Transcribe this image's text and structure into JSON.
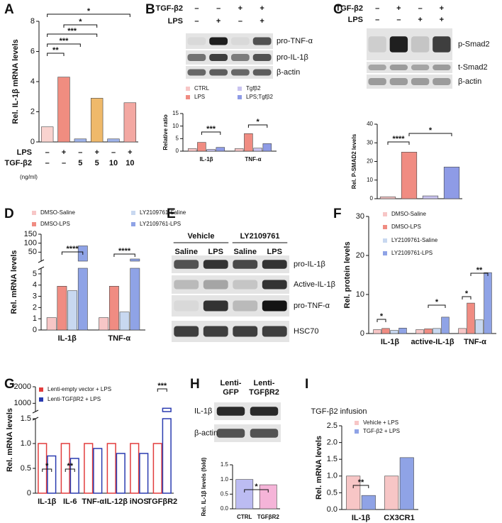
{
  "panel_labels": [
    "A",
    "B",
    "C",
    "D",
    "E",
    "F",
    "G",
    "H",
    "I"
  ],
  "blots": [
    {
      "conditions": [
        {
          "label": "TGF-β2",
          "values": [
            "–",
            "–",
            "+",
            "+"
          ]
        },
        {
          "label": "LPS",
          "values": [
            "–",
            "+",
            "–",
            "+"
          ]
        }
      ],
      "bands": [
        "pro-TNF-α",
        "pro-IL-1β",
        "β-actin"
      ]
    },
    {
      "conditions": [
        {
          "label": "TGF-β2",
          "values": [
            "–",
            "+",
            "–",
            "+"
          ]
        },
        {
          "label": "LPS",
          "values": [
            "–",
            "–",
            "+",
            "+"
          ]
        }
      ],
      "bands": [
        "p-Smad2",
        "t-Smad2",
        "β-actin"
      ]
    },
    {
      "groups": [
        "Vehicle",
        "LY2109761"
      ],
      "lanes": [
        "Saline",
        "LPS",
        "Saline",
        "LPS"
      ],
      "bands": [
        "pro-IL-1β",
        "Active-IL-1β",
        "pro-TNF-α",
        "HSC70"
      ]
    },
    {
      "lanes": [
        [
          "Lenti-",
          "GFP"
        ],
        [
          "Lenti-",
          "TGFβR2"
        ]
      ],
      "bands": [
        "IL-1β",
        "β-actin"
      ]
    }
  ],
  "chart_data": [
    {
      "type": "bar",
      "y_label": "Rel. IL-1β mRNA levels",
      "categories": [
        null,
        null,
        null,
        null,
        null,
        null
      ],
      "values": [
        1,
        4.3,
        0.2,
        2.9,
        0.2,
        2.6
      ],
      "colors": [
        "#f9d3cf",
        "#f08d80",
        "#9fb3ea",
        "#efb96a",
        "#9fb3ea",
        "#f3a8a2"
      ],
      "ylim": [
        0,
        8
      ],
      "yticks": [
        0,
        2,
        4,
        6,
        8
      ],
      "x_rows": [
        {
          "label": "LPS",
          "values": [
            "–",
            "+",
            "–",
            "+",
            "–",
            "+"
          ]
        },
        {
          "label": "TGF-β2",
          "values": [
            "–",
            "–",
            "5",
            "5",
            "10",
            "10"
          ]
        }
      ],
      "x_unit": "(ng/ml)",
      "annotations": [
        "*",
        "*",
        "***",
        "***",
        "**"
      ]
    },
    {
      "type": "bar",
      "y_label": "Relative ratio",
      "categories": [
        "IL-1β",
        "TNF-α"
      ],
      "series": [
        {
          "name": "CTRL",
          "color": "#f7c6c6",
          "values": [
            1,
            1
          ]
        },
        {
          "name": "LPS",
          "color": "#f08c82",
          "values": [
            3.5,
            7
          ]
        },
        {
          "name": "Tgfβ2",
          "color": "#c9c3f0",
          "values": [
            0.7,
            1.2
          ]
        },
        {
          "name": "LPS;Tgfβ2",
          "color": "#8e9be6",
          "values": [
            1.5,
            3
          ]
        }
      ],
      "ylim": [
        0,
        15
      ],
      "yticks": [
        0,
        5,
        10,
        15
      ],
      "annotations": [
        "***",
        "*"
      ]
    },
    {
      "type": "bar",
      "y_label": "Rel. P-SMAD2 levels",
      "categories": [
        null,
        null,
        null,
        null
      ],
      "values": [
        1,
        25,
        1.5,
        17
      ],
      "colors": [
        "#f7c6c6",
        "#f08c82",
        "#c9c3f0",
        "#8e9be6"
      ],
      "ylim": [
        0,
        40
      ],
      "yticks": [
        0,
        10,
        20,
        30,
        40
      ],
      "annotations": [
        "****",
        "*"
      ]
    },
    {
      "type": "bar",
      "y_label": "Rel. mRNA levels",
      "categories": [
        "IL-1β",
        "TNF-α"
      ],
      "series": [
        {
          "name": "DMSO-Saline",
          "color": "#f7c6c6",
          "values": [
            1.1,
            1.1
          ]
        },
        {
          "name": "DMSO-LPS",
          "color": "#f08c82",
          "values": [
            3.9,
            3.9
          ]
        },
        {
          "name": "LY2109761-Saline",
          "color": "#c8d8f0",
          "values": [
            3.5,
            1.6
          ]
        },
        {
          "name": "LY2109761-LPS",
          "color": "#8fa3e6",
          "values": [
            85,
            12
          ]
        }
      ],
      "ylim": [
        [
          0,
          5.5
        ],
        [
          0,
          150
        ]
      ],
      "yticks": [
        0,
        1,
        2,
        3,
        4,
        5,
        50,
        100,
        150
      ],
      "annotations": [
        "****",
        "****"
      ]
    },
    {
      "type": "bar",
      "y_label": "Rel. protein levels",
      "categories": [
        "IL-1β",
        "active-IL-1β",
        "TNF-α"
      ],
      "series": [
        {
          "name": "DMSO-Saline",
          "color": "#f7c6c6",
          "values": [
            1,
            1,
            1.3
          ]
        },
        {
          "name": "DMSO-LPS",
          "color": "#f08c82",
          "values": [
            1.3,
            1.2,
            7.8
          ]
        },
        {
          "name": "LY2109761-Saline",
          "color": "#c8d8f0",
          "values": [
            0.8,
            1.3,
            3.5
          ]
        },
        {
          "name": "LY2109761-LPS",
          "color": "#8fa3e6",
          "values": [
            1.4,
            4.2,
            15.6
          ]
        }
      ],
      "ylim": [
        0,
        30
      ],
      "yticks": [
        0,
        10,
        20,
        30
      ],
      "annotations": [
        "*",
        "*",
        "*",
        "**"
      ]
    },
    {
      "type": "bar",
      "y_label": "Rel. mRNA levels",
      "bar_style": "outline",
      "categories": [
        "IL-1β",
        "IL-6",
        "TNF-α",
        "IL-12β",
        "iNOS",
        "TGFβR2"
      ],
      "series": [
        {
          "name": "Lenti-empty vector + LPS",
          "color": "#e23c3c",
          "values": [
            1,
            1,
            1,
            1,
            1,
            1
          ]
        },
        {
          "name": "Lenti-TGFβR2 + LPS",
          "color": "#2a3bb0",
          "values": [
            0.75,
            0.7,
            0.9,
            0.8,
            0.8,
            700
          ]
        }
      ],
      "ylim": [
        [
          0,
          1.5
        ],
        [
          500,
          2000
        ]
      ],
      "yticks": [
        0,
        0.5,
        {
          "value": 1,
          "label": "1.0"
        },
        1.5,
        1000,
        2000
      ],
      "annotations": [
        "*",
        "**",
        "***"
      ]
    },
    {
      "type": "bar",
      "y_label": "Rel. IL-1β levels (fold)",
      "categories": [
        "CTRL",
        "TGFβR2"
      ],
      "values": [
        1,
        0.82
      ],
      "colors": [
        "#bcbcf2",
        "#f5b4d8"
      ],
      "ylim": [
        0,
        1.5
      ],
      "yticks": [
        {
          "value": 0,
          "label": "0.0"
        },
        0.5,
        {
          "value": 1,
          "label": "1.0"
        },
        1.5
      ],
      "annotations": [
        "*"
      ]
    },
    {
      "type": "bar",
      "title": "TGF-β2 infusion",
      "y_label": "Rel. mRNA levels",
      "categories": [
        "IL-1β",
        "CX3CR1"
      ],
      "series": [
        {
          "name": "Vehicle + LPS",
          "color": "#f7c6c6",
          "values": [
            1,
            1
          ]
        },
        {
          "name": "TGF-β2 + LPS",
          "color": "#8fa3e6",
          "values": [
            0.42,
            1.55
          ]
        }
      ],
      "ylim": [
        0,
        2.5
      ],
      "yticks": [
        {
          "value": 0,
          "label": "0.0"
        },
        0.5,
        {
          "value": 1,
          "label": "1.0"
        },
        1.5,
        {
          "value": 2,
          "label": "2.0"
        },
        2.5
      ],
      "annotations": [
        "**"
      ]
    }
  ]
}
